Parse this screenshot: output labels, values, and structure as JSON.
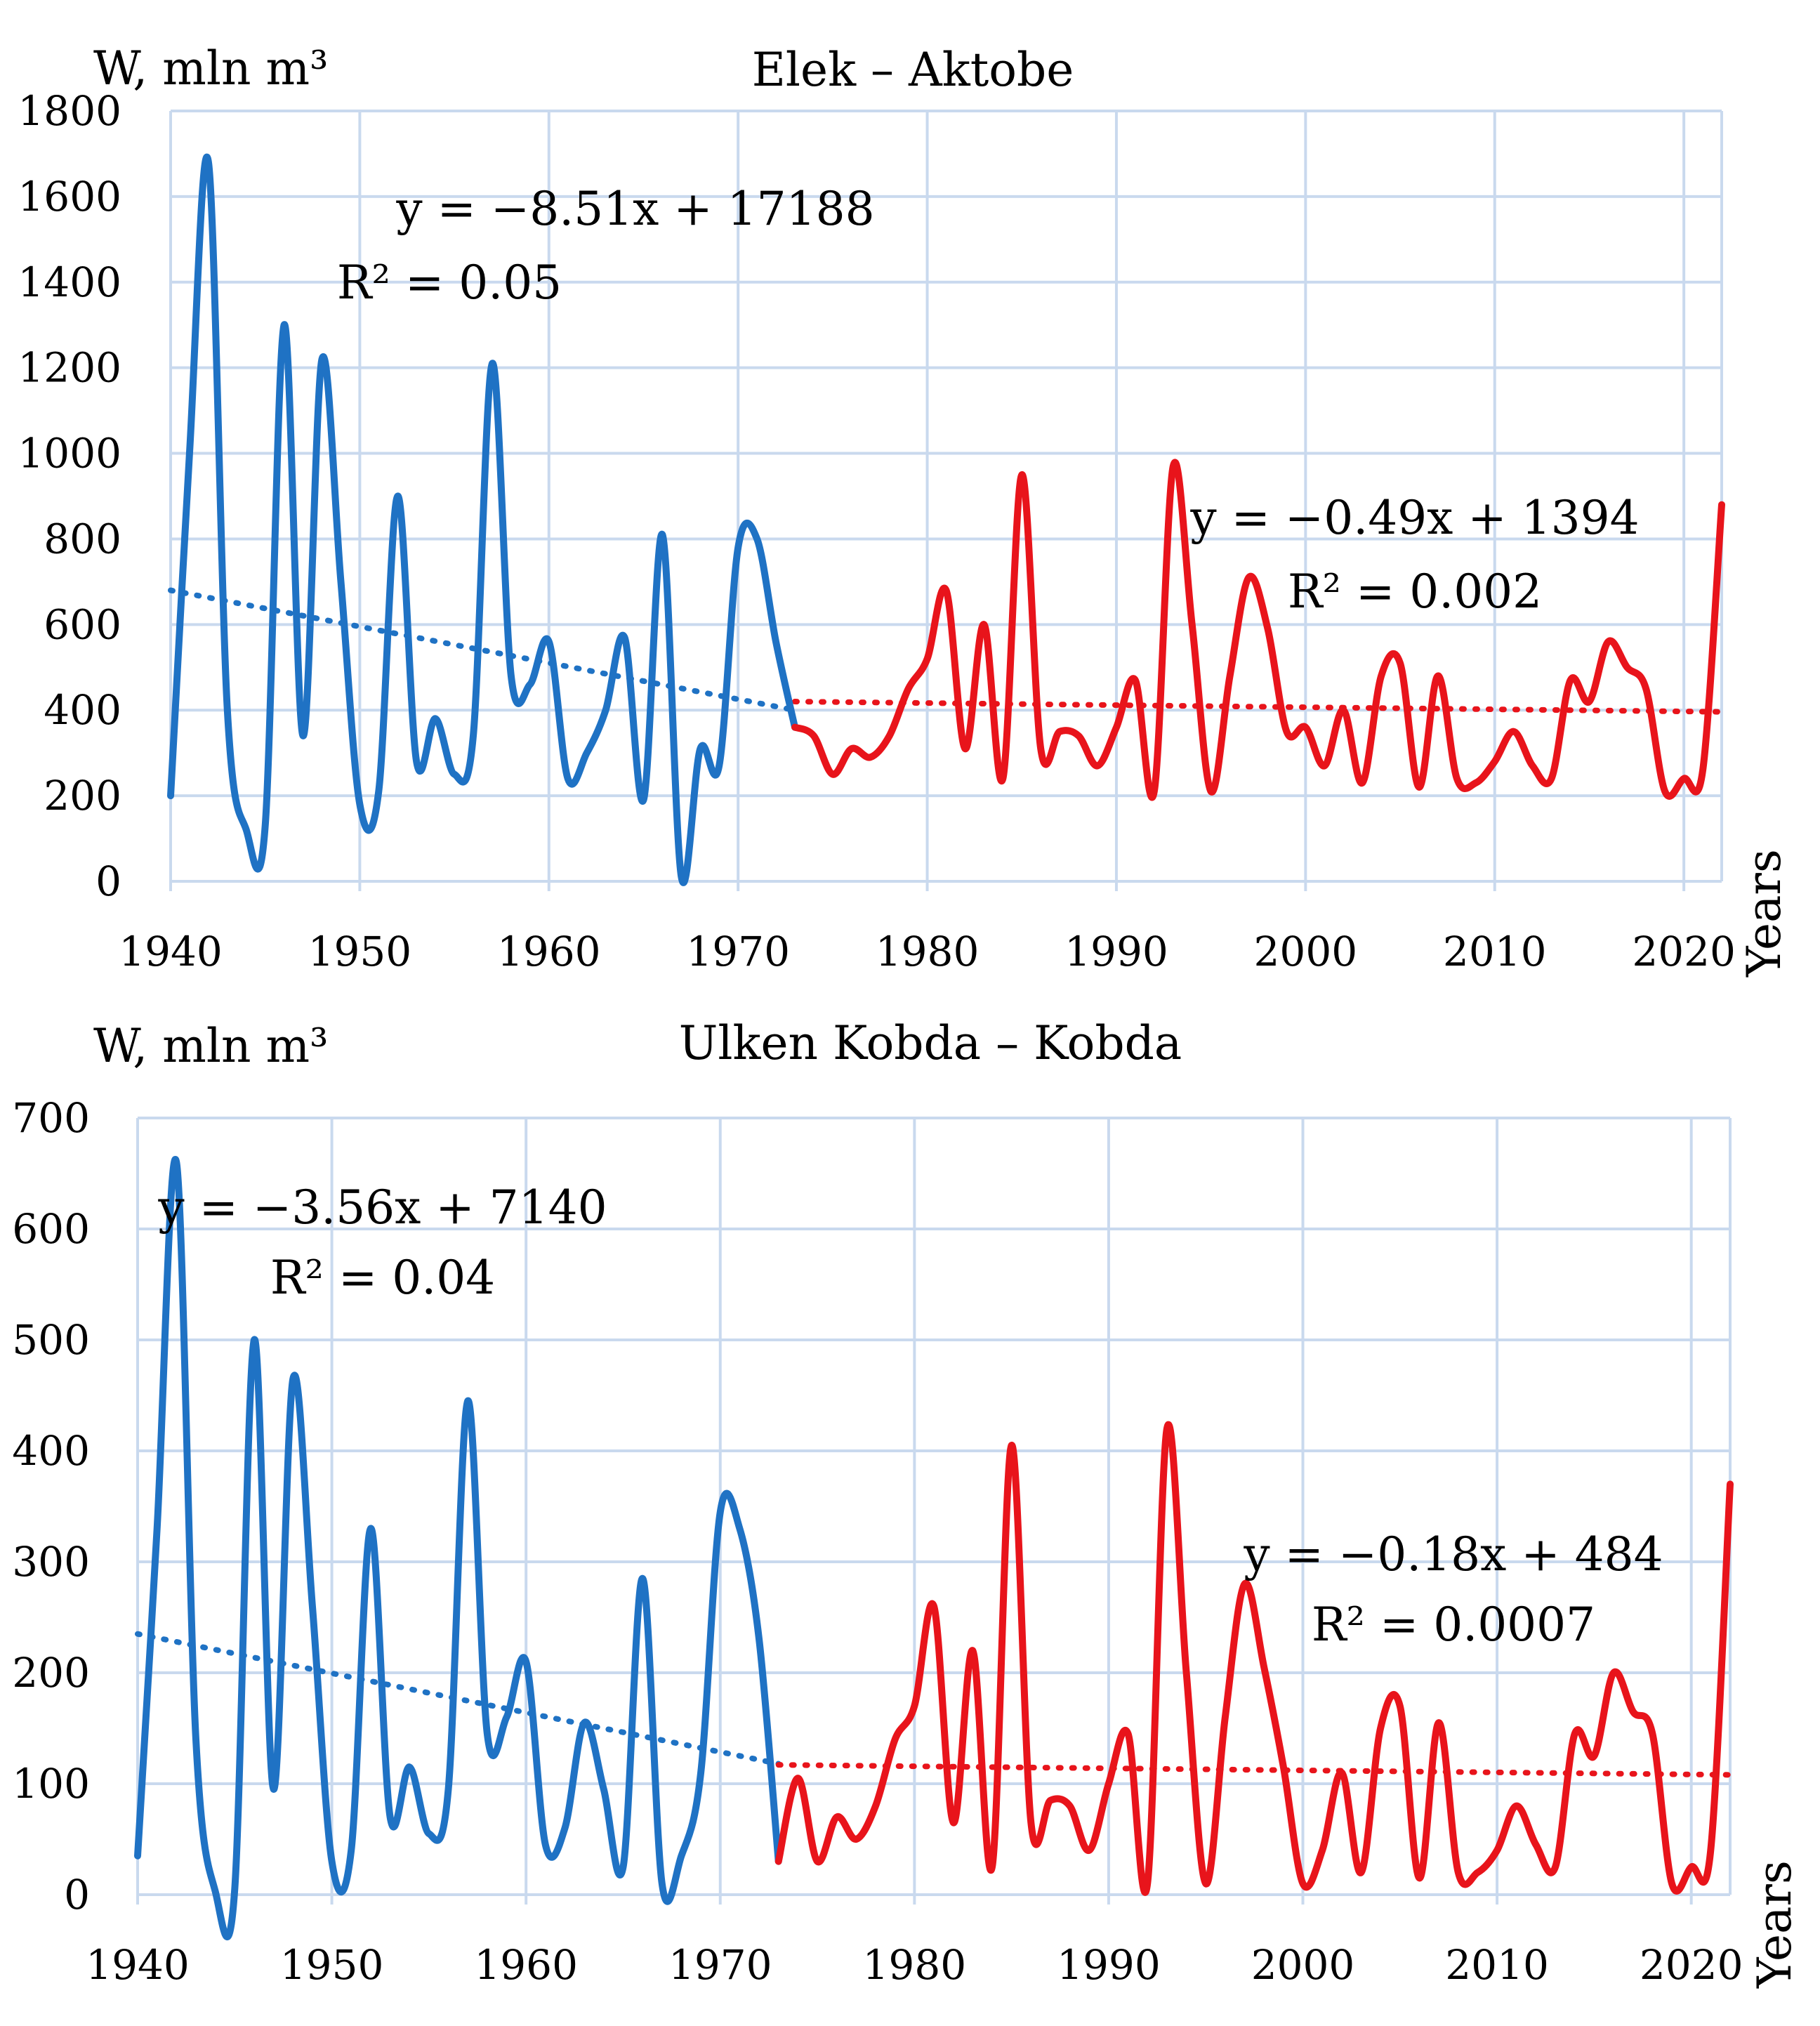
{
  "chart_data": [
    {
      "type": "line",
      "title": "Elek – Aktobe",
      "ylabel": "W, mln m³",
      "xlabel": "Years",
      "xlim": [
        1940,
        2022
      ],
      "ylim": [
        0,
        1800
      ],
      "xticks": [
        "1940",
        "1950",
        "1960",
        "1970",
        "1980",
        "1990",
        "2000",
        "2010",
        "2020"
      ],
      "yticks": [
        "0",
        "200",
        "400",
        "600",
        "800",
        "1000",
        "1200",
        "1400",
        "1600",
        "1800"
      ],
      "colors": {
        "period1": "#1f72c4",
        "period2": "#e8141b"
      },
      "series": [
        {
          "name": "1940–1973",
          "x": [
            1940,
            1941,
            1942,
            1943,
            1944,
            1945,
            1946,
            1947,
            1948,
            1949,
            1950,
            1951,
            1952,
            1953,
            1954,
            1955,
            1956,
            1957,
            1958,
            1959,
            1960,
            1961,
            1962,
            1963,
            1964,
            1965,
            1966,
            1967,
            1968,
            1969,
            1970,
            1971,
            1972,
            1973
          ],
          "values": [
            200,
            1000,
            1680,
            400,
            120,
            130,
            1300,
            340,
            1220,
            700,
            180,
            210,
            900,
            280,
            380,
            250,
            340,
            1210,
            480,
            460,
            560,
            240,
            300,
            400,
            570,
            190,
            810,
            10,
            310,
            270,
            780,
            800,
            560,
            360
          ]
        },
        {
          "name": "1973–2022",
          "x": [
            1973,
            1974,
            1975,
            1976,
            1977,
            1978,
            1979,
            1980,
            1981,
            1982,
            1983,
            1984,
            1985,
            1986,
            1987,
            1988,
            1989,
            1990,
            1991,
            1992,
            1993,
            1994,
            1995,
            1996,
            1997,
            1998,
            1999,
            2000,
            2001,
            2002,
            2003,
            2004,
            2005,
            2006,
            2007,
            2008,
            2009,
            2010,
            2011,
            2012,
            2013,
            2014,
            2015,
            2016,
            2017,
            2018,
            2019,
            2020,
            2021,
            2022
          ],
          "values": [
            360,
            340,
            250,
            310,
            290,
            340,
            450,
            520,
            680,
            310,
            600,
            240,
            950,
            310,
            350,
            340,
            270,
            360,
            470,
            210,
            970,
            600,
            210,
            480,
            710,
            590,
            350,
            360,
            270,
            400,
            230,
            480,
            510,
            220,
            480,
            240,
            230,
            280,
            350,
            270,
            240,
            470,
            420,
            560,
            500,
            450,
            210,
            240,
            260,
            880
          ]
        }
      ],
      "trendlines": [
        {
          "equation": "y = −8.51x + 17188",
          "r2": "R² = 0.05",
          "x": [
            1940,
            1973
          ],
          "y": [
            680,
            400
          ]
        },
        {
          "equation": "y = −0.49x + 1394",
          "r2": "R² = 0.002",
          "x": [
            1973,
            2022
          ],
          "y": [
            420,
            396
          ]
        }
      ]
    },
    {
      "type": "line",
      "title": "Ulken Kobda  – Kobda",
      "ylabel": "W, mln m³",
      "xlabel": "Years",
      "xlim": [
        1940,
        2022
      ],
      "ylim": [
        0,
        700
      ],
      "xticks": [
        "1940",
        "1950",
        "1960",
        "1970",
        "1980",
        "1990",
        "2000",
        "2010",
        "2020"
      ],
      "yticks": [
        "0",
        "100",
        "200",
        "300",
        "400",
        "500",
        "600",
        "700"
      ],
      "colors": {
        "period1": "#1f72c4",
        "period2": "#e8141b"
      },
      "series": [
        {
          "name": "1940–1973",
          "x": [
            1940,
            1941,
            1942,
            1943,
            1944,
            1945,
            1946,
            1947,
            1948,
            1949,
            1950,
            1951,
            1952,
            1953,
            1954,
            1955,
            1956,
            1957,
            1958,
            1959,
            1960,
            1961,
            1962,
            1963,
            1964,
            1965,
            1966,
            1967,
            1968,
            1969,
            1970,
            1971,
            1972,
            1973
          ],
          "values": [
            35,
            330,
            660,
            140,
            3,
            5,
            500,
            95,
            465,
            260,
            30,
            40,
            330,
            70,
            115,
            55,
            95,
            445,
            145,
            160,
            210,
            45,
            60,
            155,
            95,
            25,
            285,
            10,
            35,
            110,
            345,
            330,
            230,
            30
          ]
        },
        {
          "name": "1973–2022",
          "x": [
            1973,
            1974,
            1975,
            1976,
            1977,
            1978,
            1979,
            1980,
            1981,
            1982,
            1983,
            1984,
            1985,
            1986,
            1987,
            1988,
            1989,
            1990,
            1991,
            1992,
            1993,
            1994,
            1995,
            1996,
            1997,
            1998,
            1999,
            2000,
            2001,
            2002,
            2003,
            2004,
            2005,
            2006,
            2007,
            2008,
            2009,
            2010,
            2011,
            2012,
            2013,
            2014,
            2015,
            2016,
            2017,
            2018,
            2019,
            2020,
            2021,
            2022
          ],
          "values": [
            30,
            105,
            30,
            70,
            50,
            80,
            140,
            170,
            260,
            65,
            220,
            25,
            405,
            65,
            85,
            80,
            40,
            100,
            145,
            10,
            420,
            200,
            10,
            160,
            280,
            205,
            115,
            10,
            40,
            110,
            20,
            150,
            170,
            15,
            155,
            20,
            20,
            40,
            80,
            45,
            25,
            145,
            125,
            200,
            165,
            145,
            10,
            25,
            40,
            370
          ]
        }
      ],
      "trendlines": [
        {
          "equation": "y = −3.56x + 7140",
          "r2": "R² = 0.04",
          "x": [
            1940,
            1973
          ],
          "y": [
            235,
            118
          ]
        },
        {
          "equation": "y = −0.18x + 484",
          "r2": "R² = 0.0007",
          "x": [
            1973,
            2022
          ],
          "y": [
            117,
            108
          ]
        }
      ]
    }
  ]
}
